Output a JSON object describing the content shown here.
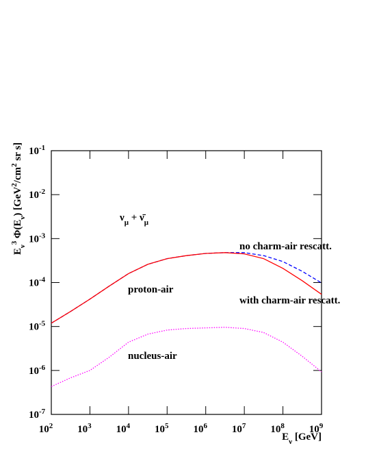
{
  "chart_data": {
    "type": "line",
    "xlabel": [
      [
        "E",
        "normal"
      ],
      [
        "ν",
        "sub"
      ],
      [
        " [GeV]",
        "normal"
      ]
    ],
    "ylabel": [
      [
        "E",
        "normal"
      ],
      [
        "ν",
        "sub"
      ],
      [
        "3",
        "sup"
      ],
      [
        " Φ(E",
        "normal"
      ],
      [
        "ν",
        "sub"
      ],
      [
        ") [GeV",
        "normal"
      ],
      [
        "2",
        "sup"
      ],
      [
        "/cm",
        "normal"
      ],
      [
        "2",
        "sup"
      ],
      [
        " sr s]",
        "normal"
      ]
    ],
    "log_x": true,
    "log_y": true,
    "xlim": [
      100,
      1000000000
    ],
    "ylim": [
      1e-07,
      0.1
    ],
    "xticks": [
      {
        "value": 100,
        "label": "10",
        "exponent": "2"
      },
      {
        "value": 1000,
        "label": "10",
        "exponent": "3"
      },
      {
        "value": 10000,
        "label": "10",
        "exponent": "4"
      },
      {
        "value": 100000,
        "label": "10",
        "exponent": "5"
      },
      {
        "value": 1000000,
        "label": "10",
        "exponent": "6"
      },
      {
        "value": 10000000,
        "label": "10",
        "exponent": "7"
      },
      {
        "value": 100000000,
        "label": "10",
        "exponent": "8"
      },
      {
        "value": 1000000000,
        "label": "10",
        "exponent": "9"
      }
    ],
    "yticks": [
      {
        "value": 1e-07,
        "label": "10",
        "exponent": "-7"
      },
      {
        "value": 1e-06,
        "label": "10",
        "exponent": "-6"
      },
      {
        "value": 1e-05,
        "label": "10",
        "exponent": "-5"
      },
      {
        "value": 0.0001,
        "label": "10",
        "exponent": "-4"
      },
      {
        "value": 0.001,
        "label": "10",
        "exponent": "-3"
      },
      {
        "value": 0.01,
        "label": "10",
        "exponent": "-2"
      },
      {
        "value": 0.1,
        "label": "10",
        "exponent": "-1"
      }
    ],
    "x": [
      100,
      316,
      1000,
      3160,
      10000,
      31600,
      100000,
      316000,
      1000000,
      3160000,
      10000000,
      31600000,
      100000000,
      316000000,
      1000000000
    ],
    "series": [
      {
        "name": "no charm-air rescatt.",
        "color": "#0000ff",
        "dash": "5,3",
        "values": [
          1.19e-05,
          2.2e-05,
          4.2e-05,
          8.3e-05,
          0.00016,
          0.00026,
          0.00035,
          0.00041,
          0.00046,
          0.00048,
          0.00048,
          0.00041,
          0.0003,
          0.00018,
          9.8e-05
        ]
      },
      {
        "name": "with charm-air rescatt.",
        "color": "#ff0000",
        "dash": "none",
        "values": [
          1.19e-05,
          2.2e-05,
          4.2e-05,
          8.3e-05,
          0.00016,
          0.00026,
          0.00035,
          0.00041,
          0.00046,
          0.00048,
          0.00045,
          0.00035,
          0.00021,
          0.00011,
          5.4e-05
        ]
      },
      {
        "name": "nucleus-air",
        "color": "#ff00ff",
        "dash": "1.5,2",
        "values": [
          4.3e-07,
          6.8e-07,
          1e-06,
          2e-06,
          4.4e-06,
          6.7e-06,
          8.3e-06,
          9e-06,
          9.3e-06,
          9.6e-06,
          9e-06,
          7.3e-06,
          4.4e-06,
          2.1e-06,
          9.3e-07
        ]
      }
    ],
    "annotations": [
      {
        "text": [
          [
            "ν",
            "normal"
          ],
          [
            "μ",
            "sub"
          ],
          [
            " + ",
            "normal"
          ],
          [
            "ν̄",
            "normal"
          ],
          [
            "μ",
            "sub"
          ]
        ]
      },
      {
        "text": [
          [
            "proton-air",
            "normal"
          ]
        ]
      }
    ]
  }
}
